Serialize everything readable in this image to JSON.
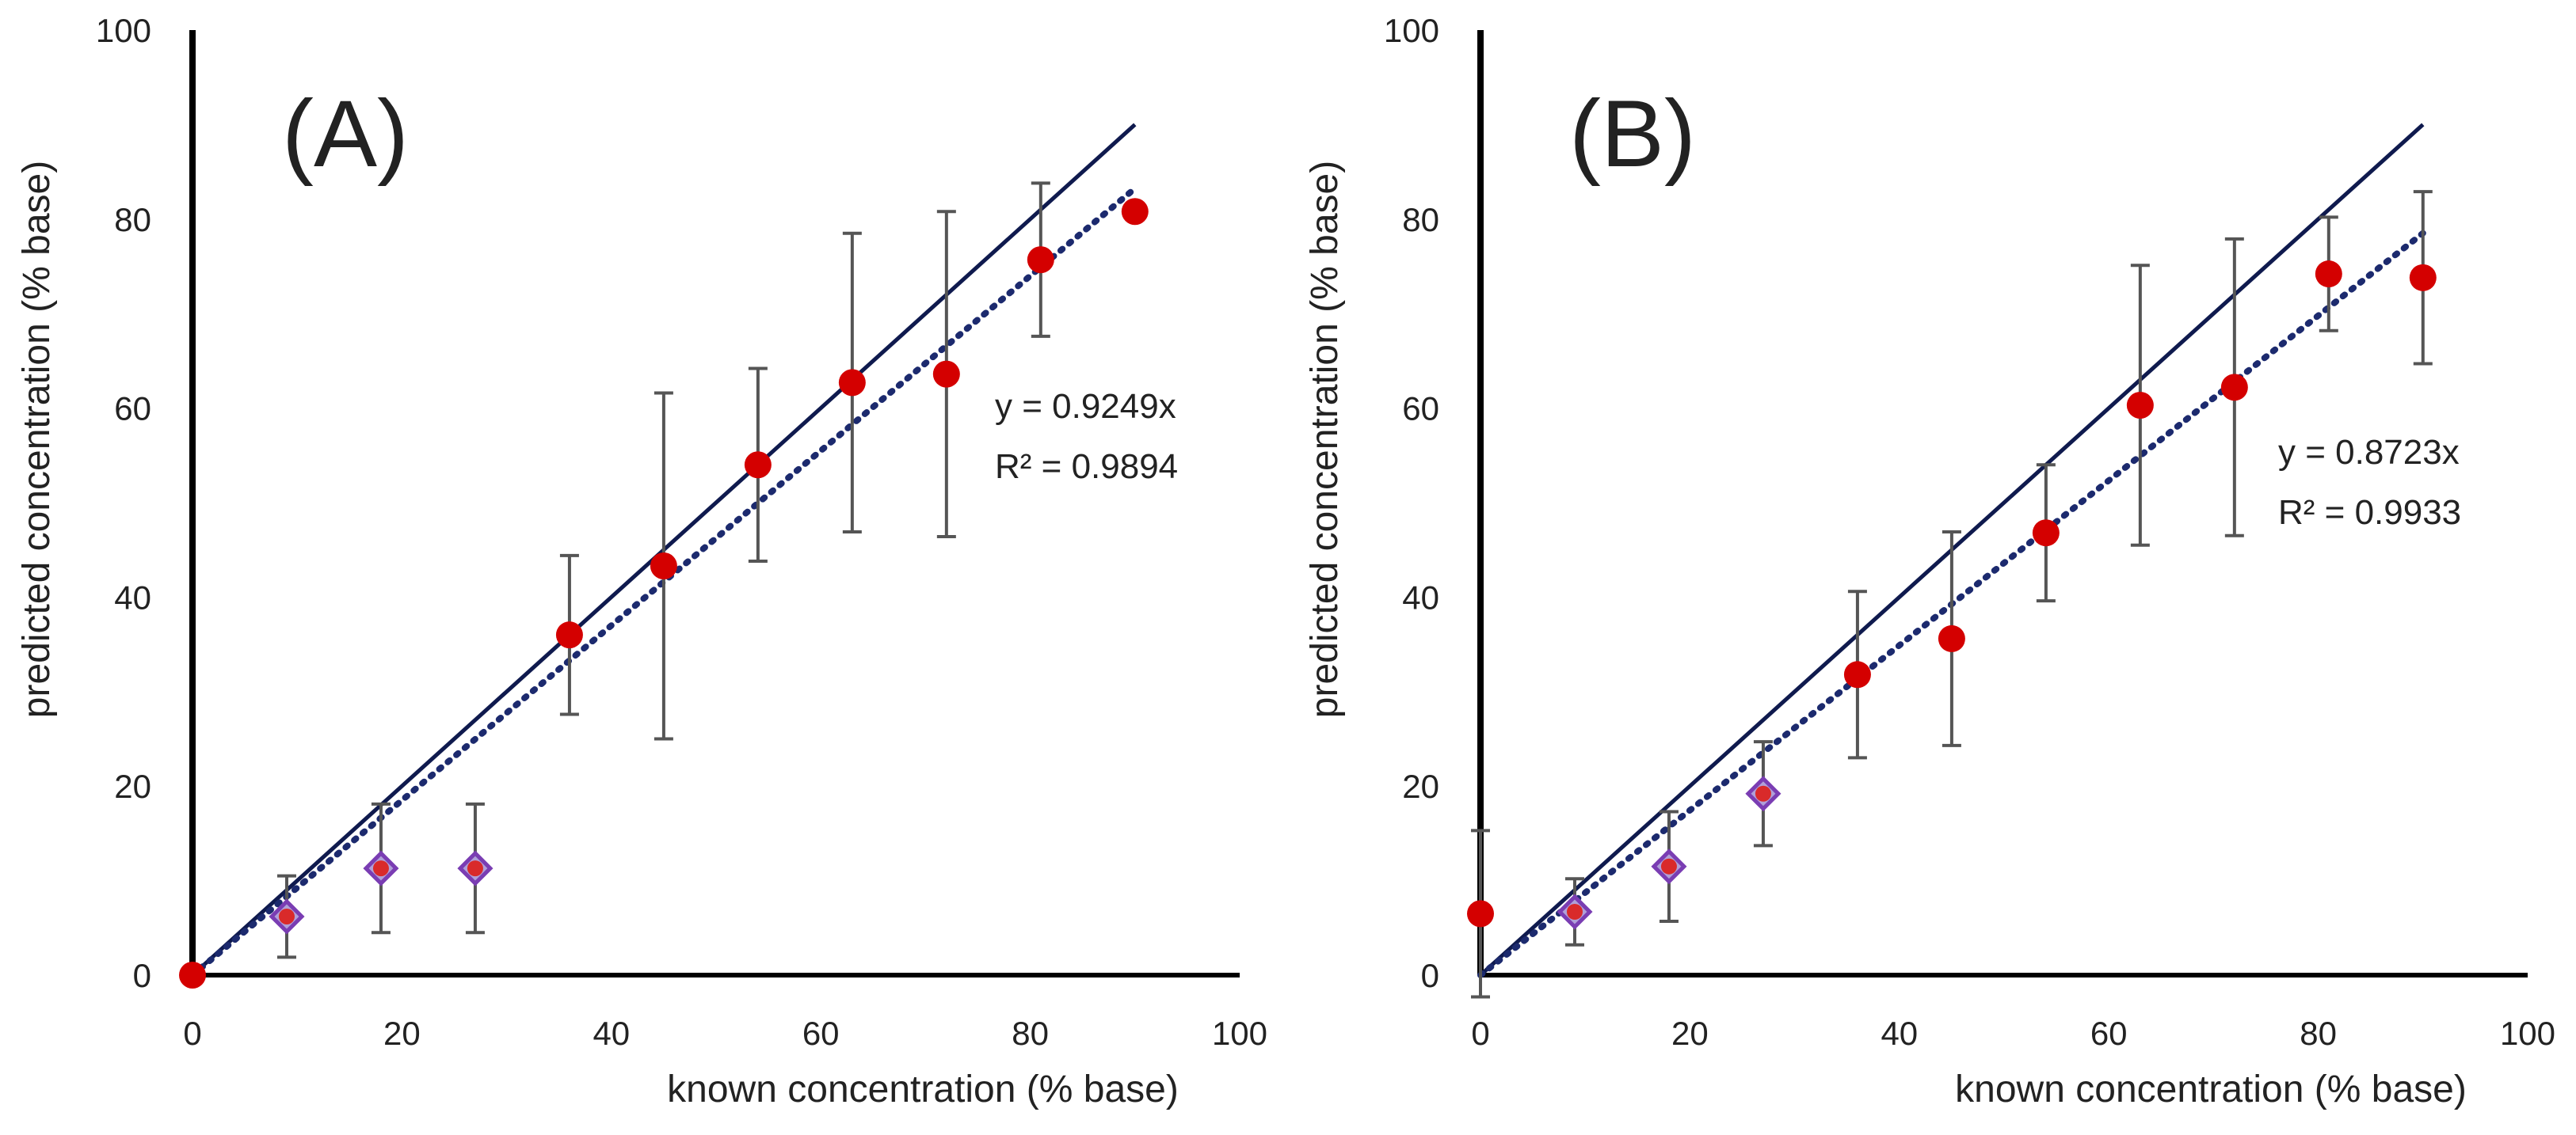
{
  "colors": {
    "axis": "#000000",
    "identity_line": "#0f1a4e",
    "trend_line": "#1c2a6e",
    "circle_marker": "#d40000",
    "diamond_fill": "#d92a2a",
    "diamond_stroke": "#7a3db3",
    "error_bar": "#555555"
  },
  "chart_data": [
    {
      "type": "scatter",
      "panel_label": "(A)",
      "xlabel": "known concentration (% base)",
      "ylabel": "predicted concentration (% base)",
      "xlim": [
        0,
        100
      ],
      "ylim": [
        0,
        100
      ],
      "xticks": [
        "0",
        "20",
        "40",
        "60",
        "80",
        "100"
      ],
      "yticks": [
        "0",
        "20",
        "40",
        "60",
        "80",
        "100"
      ],
      "grid": false,
      "equation": "y = 0.9249x",
      "r_squared": "R² = 0.9894",
      "slope": 0.9249,
      "identity_line_to": 90,
      "trend_line_to": 90,
      "points": [
        {
          "x": 0,
          "y": 0,
          "err": 0,
          "marker": "circle"
        },
        {
          "x": 9,
          "y": 6.2,
          "err": 4.3,
          "marker": "diamond"
        },
        {
          "x": 18,
          "y": 11.3,
          "err": 6.8,
          "marker": "diamond"
        },
        {
          "x": 27,
          "y": 11.3,
          "err": 6.8,
          "marker": "diamond"
        },
        {
          "x": 36,
          "y": 36,
          "err": 8.4,
          "marker": "circle"
        },
        {
          "x": 45,
          "y": 43.3,
          "err": 18.3,
          "marker": "circle"
        },
        {
          "x": 54,
          "y": 54,
          "err": 10.2,
          "marker": "circle"
        },
        {
          "x": 63,
          "y": 62.7,
          "err": 15.8,
          "marker": "circle"
        },
        {
          "x": 72,
          "y": 63.6,
          "err": 17.2,
          "marker": "circle"
        },
        {
          "x": 81,
          "y": 75.7,
          "err": 8.1,
          "marker": "circle"
        },
        {
          "x": 90,
          "y": 80.8,
          "err": 0,
          "marker": "circle"
        }
      ]
    },
    {
      "type": "scatter",
      "panel_label": "(B)",
      "xlabel": "known concentration (% base)",
      "ylabel": "predicted concentration (% base)",
      "xlim": [
        0,
        100
      ],
      "ylim": [
        0,
        100
      ],
      "xticks": [
        "0",
        "20",
        "40",
        "60",
        "80",
        "100"
      ],
      "yticks": [
        "0",
        "20",
        "40",
        "60",
        "80",
        "100"
      ],
      "grid": false,
      "equation": "y = 0.8723x",
      "r_squared": "R² = 0.9933",
      "slope": 0.8723,
      "identity_line_to": 90,
      "trend_line_to": 90,
      "points": [
        {
          "x": 0,
          "y": 6.5,
          "err": 8.8,
          "marker": "circle"
        },
        {
          "x": 9,
          "y": 6.7,
          "err": 3.5,
          "marker": "diamond"
        },
        {
          "x": 18,
          "y": 11.5,
          "err": 5.8,
          "marker": "diamond"
        },
        {
          "x": 27,
          "y": 19.2,
          "err": 5.5,
          "marker": "diamond"
        },
        {
          "x": 36,
          "y": 31.8,
          "err": 8.8,
          "marker": "circle"
        },
        {
          "x": 45,
          "y": 35.6,
          "err": 11.3,
          "marker": "circle"
        },
        {
          "x": 54,
          "y": 46.8,
          "err": 7.2,
          "marker": "circle"
        },
        {
          "x": 63,
          "y": 60.3,
          "err": 14.8,
          "marker": "circle"
        },
        {
          "x": 72,
          "y": 62.2,
          "err": 15.7,
          "marker": "circle"
        },
        {
          "x": 81,
          "y": 74.2,
          "err": 6,
          "marker": "circle"
        },
        {
          "x": 90,
          "y": 73.8,
          "err": 9.1,
          "marker": "circle"
        }
      ]
    }
  ]
}
